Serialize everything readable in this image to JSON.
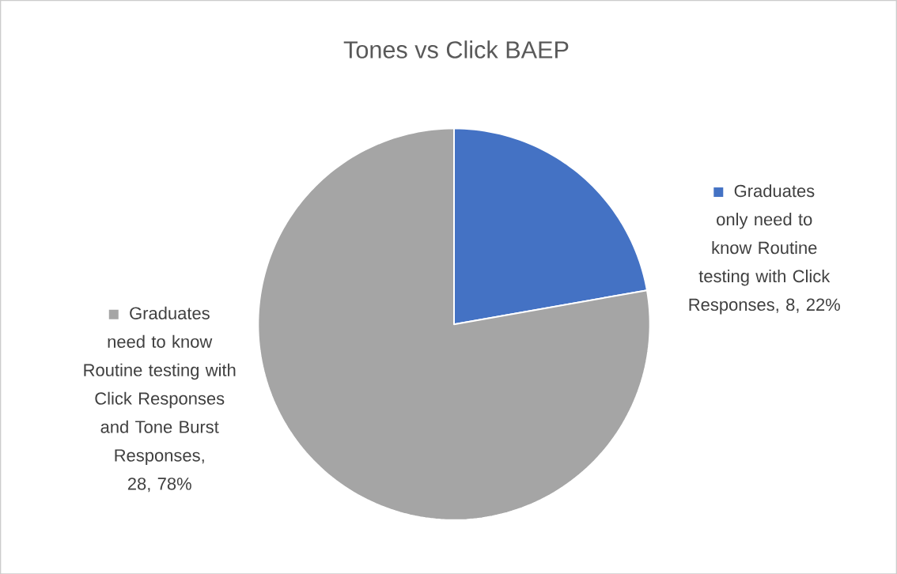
{
  "chart_data": {
    "type": "pie",
    "title": "Tones vs Click BAEP",
    "categories": [
      "Graduates only need to know Routine testing with Click Responses",
      "Graduates need to know Routine testing with Click Responses and Tone Burst Responses"
    ],
    "values": [
      8,
      28
    ],
    "value_labels": [
      ", 8, 22%",
      ", 28, 78%"
    ],
    "legend": "right",
    "colors": [
      "#4472c4",
      "#a5a5a5"
    ]
  }
}
